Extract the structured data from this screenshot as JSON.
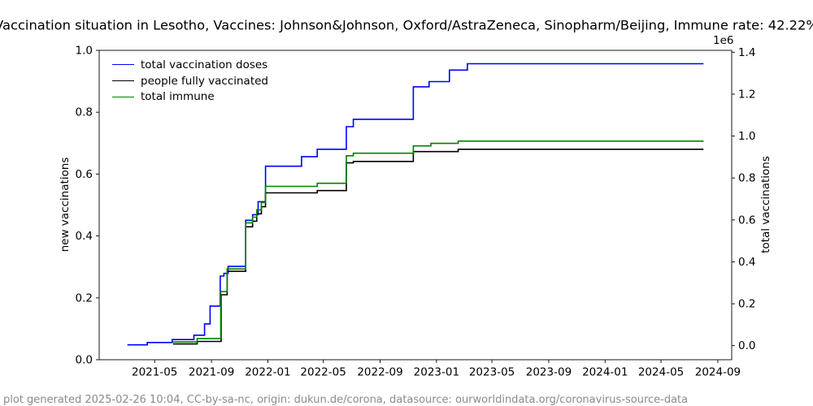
{
  "title": "Vaccination situation in Lesotho, Vaccines: Johnson&Johnson, Oxford/AstraZeneca, Sinopharm/Beijing, Immune rate: 42.22%",
  "footer": "plot generated 2025-02-26 10:04, CC-by-sa-nc, origin: dukun.de/corona, datasource: ourworldindata.org/coronavirus-source-data",
  "colors": {
    "axis": "#000000",
    "footer_text": "#8a8a8a",
    "total_doses": "#0000ff",
    "fully_vaccinated": "#000000",
    "total_immune": "#008000"
  },
  "legend": {
    "entries": [
      {
        "label": "total vaccination doses",
        "color": "#0000ff"
      },
      {
        "label": "people fully vaccinated",
        "color": "#000000"
      },
      {
        "label": "total immune",
        "color": "#008000"
      }
    ]
  },
  "axes": {
    "left": {
      "label": "new vaccinations",
      "ticks": [
        "0.0",
        "0.2",
        "0.4",
        "0.6",
        "0.8",
        "1.0"
      ],
      "lim": [
        0.0,
        1.0
      ]
    },
    "right": {
      "label": "total vaccinations",
      "offset_label": "1e6",
      "ticks": [
        "0.0",
        "0.2",
        "0.4",
        "0.6",
        "0.8",
        "1.0",
        "1.2",
        "1.4"
      ],
      "lim": [
        -0.067,
        1.409
      ]
    },
    "x": {
      "ticks": [
        "2021-05",
        "2021-09",
        "2022-01",
        "2022-05",
        "2022-09",
        "2023-01",
        "2023-05",
        "2023-09",
        "2024-01",
        "2024-05",
        "2024-09"
      ],
      "lim": [
        "2021-01-01",
        "2024-10-01"
      ]
    }
  },
  "chart_data": {
    "type": "line",
    "step": true,
    "title": "Vaccination situation in Lesotho, Vaccines: Johnson&Johnson, Oxford/AstraZeneca, Sinopharm/Beijing, Immune rate: 42.22%",
    "xlabel": "",
    "ylabel_left": "new vaccinations",
    "ylabel_right": "total vaccinations",
    "y_unit": "1e6",
    "legend_position": "upper left",
    "grid": false,
    "series": [
      {
        "name": "total vaccination doses",
        "color": "#0000ff",
        "axis": "right",
        "points": [
          [
            "2021-03-03",
            0.004
          ],
          [
            "2021-04-15",
            0.015
          ],
          [
            "2021-06-08",
            0.029
          ],
          [
            "2021-07-25",
            0.05
          ],
          [
            "2021-08-17",
            0.104
          ],
          [
            "2021-08-29",
            0.189
          ],
          [
            "2021-09-20",
            0.332
          ],
          [
            "2021-09-28",
            0.345
          ],
          [
            "2021-10-07",
            0.378
          ],
          [
            "2021-11-14",
            0.598
          ],
          [
            "2021-11-29",
            0.625
          ],
          [
            "2021-12-11",
            0.687
          ],
          [
            "2021-12-27",
            0.856
          ],
          [
            "2022-03-15",
            0.902
          ],
          [
            "2022-04-18",
            0.937
          ],
          [
            "2022-06-20",
            1.045
          ],
          [
            "2022-07-05",
            1.08
          ],
          [
            "2022-11-12",
            1.235
          ],
          [
            "2022-12-16",
            1.26
          ],
          [
            "2023-01-29",
            1.315
          ],
          [
            "2023-03-09",
            1.345
          ],
          [
            "2024-08-01",
            1.345
          ]
        ]
      },
      {
        "name": "people fully vaccinated",
        "color": "#000000",
        "axis": "right",
        "points": [
          [
            "2021-06-10",
            0.008
          ],
          [
            "2021-08-01",
            0.02
          ],
          [
            "2021-09-22",
            0.243
          ],
          [
            "2021-10-05",
            0.355
          ],
          [
            "2021-11-14",
            0.567
          ],
          [
            "2021-11-29",
            0.594
          ],
          [
            "2021-12-08",
            0.629
          ],
          [
            "2021-12-18",
            0.663
          ],
          [
            "2021-12-27",
            0.729
          ],
          [
            "2022-04-18",
            0.74
          ],
          [
            "2022-06-20",
            0.872
          ],
          [
            "2022-07-05",
            0.879
          ],
          [
            "2022-11-12",
            0.926
          ],
          [
            "2023-02-17",
            0.937
          ],
          [
            "2024-08-01",
            0.937
          ]
        ]
      },
      {
        "name": "total immune",
        "color": "#008000",
        "axis": "right",
        "points": [
          [
            "2021-06-08",
            0.018
          ],
          [
            "2021-08-01",
            0.034
          ],
          [
            "2021-09-21",
            0.258
          ],
          [
            "2021-10-05",
            0.366
          ],
          [
            "2021-11-14",
            0.586
          ],
          [
            "2021-11-29",
            0.613
          ],
          [
            "2021-12-08",
            0.648
          ],
          [
            "2021-12-18",
            0.683
          ],
          [
            "2021-12-27",
            0.76
          ],
          [
            "2022-04-18",
            0.775
          ],
          [
            "2022-06-20",
            0.906
          ],
          [
            "2022-07-05",
            0.918
          ],
          [
            "2022-11-12",
            0.953
          ],
          [
            "2022-12-20",
            0.965
          ],
          [
            "2023-02-17",
            0.976
          ],
          [
            "2024-08-01",
            0.976
          ]
        ]
      }
    ]
  }
}
